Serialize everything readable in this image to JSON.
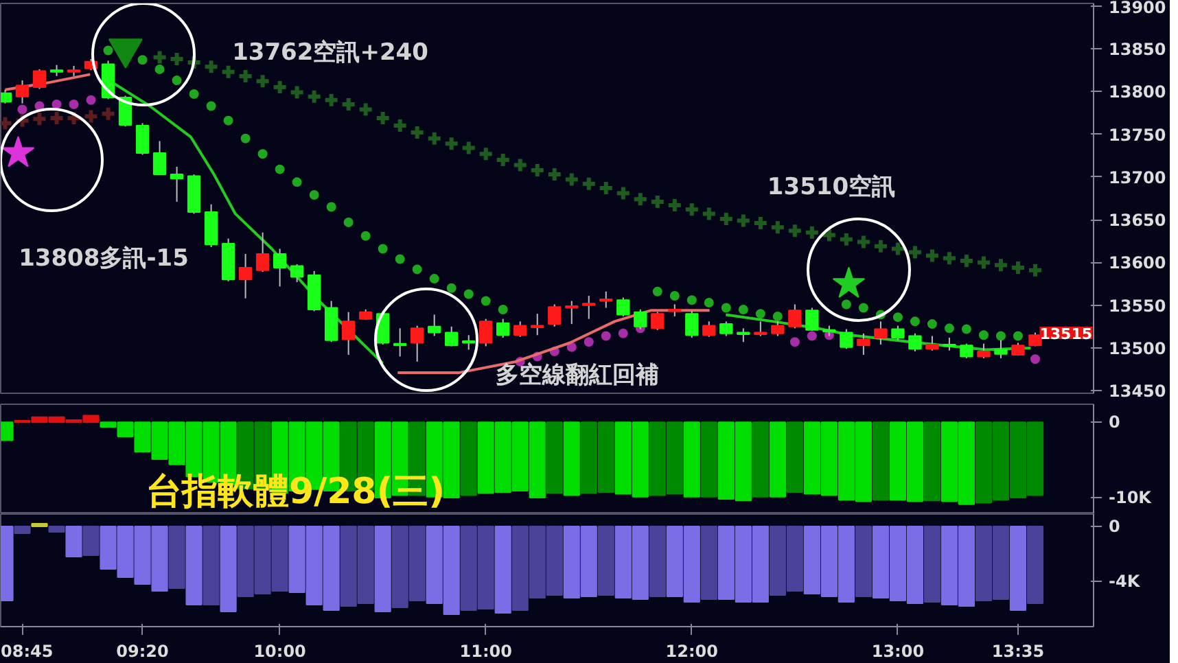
{
  "chart_data": [
    {
      "type": "candlestick",
      "tick_labels": "y",
      "grid": false,
      "x": [
        8.6667,
        8.75,
        8.8333,
        8.9167,
        9,
        9.0833,
        9.1667,
        9.25,
        9.3333,
        9.4167,
        9.5,
        9.5833,
        9.6667,
        9.75,
        9.8333,
        9.9167,
        10,
        10.0833,
        10.1667,
        10.25,
        10.3333,
        10.4167,
        10.5,
        10.5833,
        10.6667,
        10.75,
        10.8333,
        10.9167,
        11,
        11.0833,
        11.1667,
        11.25,
        11.3333,
        11.4167,
        11.5,
        11.5833,
        11.6667,
        11.75,
        11.8333,
        11.9167,
        12,
        12.0833,
        12.1667,
        12.25,
        12.3333,
        12.4167,
        12.5,
        12.5833,
        12.6667,
        12.75,
        12.8333,
        12.9167,
        13,
        13.0833,
        13.1667,
        13.25,
        13.3333,
        13.4167,
        13.5,
        13.5833,
        13.6667
      ],
      "ohlc": [
        [
          13798,
          13802,
          13786,
          13788
        ],
        [
          13794,
          13813,
          13786,
          13807
        ],
        [
          13805,
          13826,
          13803,
          13824
        ],
        [
          13825,
          13831,
          13818,
          13823
        ],
        [
          13823,
          13830,
          13818,
          13825
        ],
        [
          13827,
          13838,
          13825,
          13835
        ],
        [
          13832,
          13836,
          13791,
          13793
        ],
        [
          13793,
          13795,
          13759,
          13761
        ],
        [
          13760,
          13763,
          13726,
          13728
        ],
        [
          13728,
          13742,
          13703,
          13703
        ],
        [
          13703,
          13712,
          13671,
          13698
        ],
        [
          13701,
          13703,
          13657,
          13659
        ],
        [
          13659,
          13668,
          13618,
          13621
        ],
        [
          13622,
          13628,
          13578,
          13580
        ],
        [
          13580,
          13610,
          13558,
          13594
        ],
        [
          13591,
          13635,
          13589,
          13610
        ],
        [
          13610,
          13616,
          13572,
          13594
        ],
        [
          13596,
          13598,
          13577,
          13583
        ],
        [
          13585,
          13590,
          13543,
          13545
        ],
        [
          13547,
          13555,
          13507,
          13509
        ],
        [
          13510,
          13542,
          13492,
          13531
        ],
        [
          13534,
          13545,
          13533,
          13542
        ],
        [
          13540,
          13543,
          13504,
          13506
        ],
        [
          13505,
          13523,
          13490,
          13503
        ],
        [
          13506,
          13526,
          13484,
          13523
        ],
        [
          13525,
          13539,
          13514,
          13518
        ],
        [
          13518,
          13525,
          13502,
          13503
        ],
        [
          13508,
          13515,
          13498,
          13506
        ],
        [
          13506,
          13534,
          13502,
          13531
        ],
        [
          13529,
          13534,
          13512,
          13515
        ],
        [
          13515,
          13531,
          13513,
          13526
        ],
        [
          13524,
          13540,
          13515,
          13526
        ],
        [
          13528,
          13551,
          13525,
          13548
        ],
        [
          13547,
          13555,
          13528,
          13549
        ],
        [
          13550,
          13561,
          13534,
          13552
        ],
        [
          13555,
          13566,
          13547,
          13557
        ],
        [
          13556,
          13559,
          13537,
          13539
        ],
        [
          13542,
          13545,
          13522,
          13525
        ],
        [
          13523,
          13542,
          13521,
          13540
        ],
        [
          13543,
          13551,
          13537,
          13545
        ],
        [
          13540,
          13543,
          13512,
          13515
        ],
        [
          13515,
          13531,
          13513,
          13526
        ],
        [
          13528,
          13531,
          13514,
          13517
        ],
        [
          13518,
          13523,
          13507,
          13516
        ],
        [
          13516,
          13531,
          13514,
          13518
        ],
        [
          13517,
          13531,
          13514,
          13526
        ],
        [
          13525,
          13551,
          13523,
          13544
        ],
        [
          13544,
          13547,
          13520,
          13521
        ],
        [
          13521,
          13526,
          13514,
          13519
        ],
        [
          13518,
          13522,
          13499,
          13501
        ],
        [
          13503,
          13517,
          13492,
          13510
        ],
        [
          13512,
          13531,
          13504,
          13522
        ],
        [
          13522,
          13526,
          13509,
          13512
        ],
        [
          13514,
          13517,
          13496,
          13499
        ],
        [
          13499,
          13514,
          13497,
          13504
        ],
        [
          13504,
          13512,
          13497,
          13502
        ],
        [
          13503,
          13505,
          13488,
          13490
        ],
        [
          13490,
          13505,
          13488,
          13496
        ],
        [
          13498,
          13509,
          13488,
          13493
        ],
        [
          13492,
          13506,
          13491,
          13503
        ],
        [
          13503,
          13518,
          13502,
          13515
        ]
      ],
      "colors": [
        "#1aff1a",
        "#ff1a1a",
        "#ff1a1a",
        "#1aff1a",
        "#ff1a1a",
        "#ff1a1a",
        "#1aff1a",
        "#1aff1a",
        "#1aff1a",
        "#1aff1a",
        "#1aff1a",
        "#1aff1a",
        "#1aff1a",
        "#1aff1a",
        "#ff1a1a",
        "#ff1a1a",
        "#1aff1a",
        "#1aff1a",
        "#1aff1a",
        "#1aff1a",
        "#ff1a1a",
        "#ff1a1a",
        "#1aff1a",
        "#1aff1a",
        "#ff1a1a",
        "#1aff1a",
        "#1aff1a",
        "#1aff1a",
        "#ff1a1a",
        "#1aff1a",
        "#ff1a1a",
        "#ff1a1a",
        "#ff1a1a",
        "#ff1a1a",
        "#ff1a1a",
        "#ff1a1a",
        "#1aff1a",
        "#1aff1a",
        "#ff1a1a",
        "#ff1a1a",
        "#1aff1a",
        "#ff1a1a",
        "#1aff1a",
        "#1aff1a",
        "#ff1a1a",
        "#ff1a1a",
        "#ff1a1a",
        "#1aff1a",
        "#1aff1a",
        "#1aff1a",
        "#ff1a1a",
        "#ff1a1a",
        "#1aff1a",
        "#1aff1a",
        "#ff1a1a",
        "#1aff1a",
        "#1aff1a",
        "#ff1a1a",
        "#1aff1a",
        "#ff1a1a",
        "#ff1a1a"
      ],
      "series": [
        {
          "type": "scatter",
          "marker": "cross",
          "color": "#5c1e1e",
          "values": [
            13763,
            13766,
            13768,
            13769,
            13769,
            13771,
            13774,
            null,
            null,
            null,
            null,
            null,
            null,
            null,
            null,
            null,
            null,
            null,
            null,
            null,
            null,
            null,
            null,
            null,
            null,
            null,
            null,
            null,
            null,
            null,
            null,
            null,
            null,
            null,
            null,
            null,
            null,
            null,
            null,
            null,
            null,
            null,
            null,
            null,
            null,
            null,
            null,
            null,
            null,
            null,
            null,
            null,
            null,
            null,
            null,
            null,
            null,
            null,
            null,
            null,
            null
          ]
        },
        {
          "type": "scatter",
          "marker": "cross",
          "color": "#1f5c1f",
          "values": [
            null,
            null,
            null,
            null,
            null,
            null,
            null,
            null,
            null,
            13840,
            13838,
            13834,
            13829,
            13823,
            13818,
            13812,
            13805,
            13799,
            13794,
            13790,
            13785,
            13779,
            13769,
            13760,
            13752,
            13745,
            13739,
            13734,
            13727,
            13720,
            13714,
            13708,
            13703,
            13697,
            13692,
            13687,
            13681,
            13674,
            13671,
            13667,
            13662,
            13657,
            13651,
            13649,
            13646,
            13641,
            13637,
            13635,
            13632,
            13627,
            13624,
            13619,
            13616,
            13612,
            13608,
            13605,
            13602,
            13600,
            13597,
            13594,
            13591
          ]
        },
        {
          "type": "scatter",
          "marker": "circle",
          "color": "#1fa81f",
          "values": [
            null,
            null,
            null,
            null,
            null,
            null,
            13848,
            null,
            13837,
            13826,
            13813,
            13797,
            13783,
            13766,
            13745,
            13727,
            13709,
            13694,
            13679,
            13665,
            13647,
            13631,
            13616,
            13604,
            13592,
            13581,
            13570,
            13563,
            13555,
            13545,
            null,
            null,
            null,
            null,
            null,
            null,
            null,
            null,
            13566,
            13561,
            13556,
            13553,
            13547,
            13545,
            13540,
            13537,
            null,
            null,
            null,
            13551,
            13547,
            13539,
            13536,
            13531,
            13528,
            13523,
            13522,
            13515,
            13514,
            13514,
            null
          ]
        },
        {
          "type": "scatter",
          "marker": "circle",
          "color": "#a82ea8",
          "values": [
            null,
            13779,
            13783,
            13785,
            13785,
            13790,
            null,
            null,
            null,
            null,
            null,
            null,
            null,
            null,
            null,
            null,
            null,
            null,
            null,
            null,
            null,
            null,
            null,
            null,
            null,
            null,
            null,
            null,
            null,
            null,
            13484,
            13490,
            13496,
            13501,
            13507,
            13514,
            13517,
            13523,
            null,
            null,
            null,
            null,
            null,
            null,
            null,
            null,
            13507,
            13514,
            13515,
            null,
            null,
            null,
            null,
            null,
            null,
            null,
            null,
            null,
            null,
            null,
            13487
          ]
        },
        {
          "type": "line",
          "color": "#e86a6a",
          "x": [
            8.667,
            8.869,
            9.079
          ],
          "values": [
            13802,
            13810,
            13820
          ]
        },
        {
          "type": "line",
          "color": "#22cc22",
          "x": [
            9.158,
            9.369,
            9.567,
            9.678,
            9.784,
            9.961,
            10.178,
            10.5
          ],
          "values": [
            13815,
            13783,
            13747,
            13704,
            13657,
            13616,
            13558,
            13482
          ]
        },
        {
          "type": "line",
          "color": "#e86a6a",
          "x": [
            10.572,
            10.868,
            11.145,
            11.408,
            11.625,
            11.803,
            12.086
          ],
          "values": [
            13471,
            13471,
            13484,
            13506,
            13531,
            13544,
            13544
          ]
        },
        {
          "type": "line",
          "color": "#22cc22",
          "x": [
            12.165,
            12.395,
            12.612,
            12.77,
            13.099,
            13.428,
            13.645
          ],
          "values": [
            13539,
            13531,
            13523,
            13515,
            13506,
            13498,
            13500
          ]
        },
        {
          "type": "scatter",
          "marker": "star",
          "color": "#dd33dd",
          "x": [
            8.73
          ],
          "values": [
            13728
          ]
        },
        {
          "type": "scatter",
          "marker": "triangle",
          "color": "#118811",
          "x": [
            9.251
          ],
          "values": [
            13850
          ]
        },
        {
          "type": "scatter",
          "marker": "star",
          "color": "#22cc22",
          "x": [
            12.762
          ],
          "values": [
            13575
          ]
        }
      ],
      "xlim": [
        8.645,
        13.95
      ],
      "ylim": [
        13447,
        13903
      ],
      "yticks": [
        13450,
        13500,
        13550,
        13600,
        13650,
        13700,
        13750,
        13800,
        13850,
        13900
      ],
      "annotations": [
        "13808多訊-15",
        "13762空訊+240",
        "多空線翻紅回補",
        "13510空訊",
        "13515"
      ]
    },
    {
      "type": "bar",
      "title": "台指軟體9/28(三)",
      "tick_labels": "y",
      "grid": false,
      "x": [
        8.6667,
        8.75,
        8.8333,
        8.9167,
        9,
        9.0833,
        9.1667,
        9.25,
        9.3333,
        9.4167,
        9.5,
        9.5833,
        9.6667,
        9.75,
        9.8333,
        9.9167,
        10,
        10.0833,
        10.1667,
        10.25,
        10.3333,
        10.4167,
        10.5,
        10.5833,
        10.6667,
        10.75,
        10.8333,
        10.9167,
        11,
        11.0833,
        11.1667,
        11.25,
        11.3333,
        11.4167,
        11.5,
        11.5833,
        11.6667,
        11.75,
        11.8333,
        11.9167,
        12,
        12.0833,
        12.1667,
        12.25,
        12.3333,
        12.4167,
        12.5,
        12.5833,
        12.6667,
        12.75,
        12.8333,
        12.9167,
        13,
        13.0833,
        13.1667,
        13.25,
        13.3333,
        13.4167,
        13.5,
        13.5833,
        13.6667
      ],
      "values": [
        -2400,
        200,
        700,
        700,
        300,
        900,
        -600,
        -1900,
        -3900,
        -4900,
        -5600,
        -7200,
        -7900,
        -8300,
        -8800,
        -8900,
        -9400,
        -9100,
        -8900,
        -9100,
        -9100,
        -9000,
        -10000,
        -9700,
        -9700,
        -9900,
        -10000,
        -9700,
        -9400,
        -9300,
        -9100,
        -10000,
        -9400,
        -9700,
        -9400,
        -9300,
        -9500,
        -9900,
        -9700,
        -9500,
        -9900,
        -9900,
        -10200,
        -10400,
        -9900,
        -9900,
        -9300,
        -9500,
        -9700,
        -10300,
        -10500,
        -10300,
        -10300,
        -10500,
        -10400,
        -10500,
        -10900,
        -10700,
        -10300,
        -10000,
        -9700
      ],
      "colors": [
        "#00dd00",
        "#dd1111",
        "#dd1111",
        "#dd1111",
        "#dd1111",
        "#dd1111",
        "#00dd00",
        "#00dd00",
        "#00dd00",
        "#00dd00",
        "#00dd00",
        "#00dd00",
        "#00dd00",
        "#00dd00",
        "#008a00",
        "#008a00",
        "#00dd00",
        "#00dd00",
        "#00dd00",
        "#00dd00",
        "#008a00",
        "#008a00",
        "#00dd00",
        "#00dd00",
        "#008a00",
        "#00dd00",
        "#00dd00",
        "#008a00",
        "#00dd00",
        "#00dd00",
        "#00dd00",
        "#00dd00",
        "#008a00",
        "#00dd00",
        "#008a00",
        "#008a00",
        "#00dd00",
        "#00dd00",
        "#008a00",
        "#008a00",
        "#00dd00",
        "#008a00",
        "#00dd00",
        "#00dd00",
        "#008a00",
        "#00dd00",
        "#008a00",
        "#00dd00",
        "#00dd00",
        "#00dd00",
        "#00dd00",
        "#008a00",
        "#00dd00",
        "#00dd00",
        "#008a00",
        "#00dd00",
        "#00dd00",
        "#008a00",
        "#008a00",
        "#008a00",
        "#008a00"
      ],
      "xlim": [
        8.645,
        13.95
      ],
      "ylim": [
        -12200,
        2400
      ],
      "yticks": [
        0,
        {
          "value": -10000,
          "label": "-10K"
        }
      ]
    },
    {
      "type": "bar",
      "grid": false,
      "x": [
        8.6667,
        8.75,
        8.8333,
        8.9167,
        9,
        9.0833,
        9.1667,
        9.25,
        9.3333,
        9.4167,
        9.5,
        9.5833,
        9.6667,
        9.75,
        9.8333,
        9.9167,
        10,
        10.0833,
        10.1667,
        10.25,
        10.3333,
        10.4167,
        10.5,
        10.5833,
        10.6667,
        10.75,
        10.8333,
        10.9167,
        11,
        11.0833,
        11.1667,
        11.25,
        11.3333,
        11.4167,
        11.5,
        11.5833,
        11.6667,
        11.75,
        11.8333,
        11.9167,
        12,
        12.0833,
        12.1667,
        12.25,
        12.3333,
        12.4167,
        12.5,
        12.5833,
        12.6667,
        12.75,
        12.8333,
        12.9167,
        13,
        13.0833,
        13.1667,
        13.25,
        13.3333,
        13.4167,
        13.5,
        13.5833,
        13.6667
      ],
      "values": [
        -5400,
        -500,
        200,
        -400,
        -2200,
        -2100,
        -3100,
        -3700,
        -4200,
        -4700,
        -4500,
        -5700,
        -5700,
        -6200,
        -5100,
        -4900,
        -4700,
        -4800,
        -5700,
        -6100,
        -5800,
        -5600,
        -6200,
        -5900,
        -5400,
        -5600,
        -6400,
        -6100,
        -6000,
        -6300,
        -6100,
        -5200,
        -5000,
        -5200,
        -5100,
        -5000,
        -5200,
        -5300,
        -5100,
        -5100,
        -5500,
        -5300,
        -5300,
        -5500,
        -5500,
        -5000,
        -4700,
        -4900,
        -5100,
        -5500,
        -5100,
        -5200,
        -5400,
        -5600,
        -5500,
        -5700,
        -5800,
        -5400,
        -5300,
        -6100,
        -5600
      ],
      "colors": [
        "#7a6de6",
        "#4a4399",
        "#c8c832",
        "#4a4399",
        "#7a6de6",
        "#4a4399",
        "#7a6de6",
        "#7a6de6",
        "#7a6de6",
        "#7a6de6",
        "#4a4399",
        "#7a6de6",
        "#4a4399",
        "#7a6de6",
        "#4a4399",
        "#4a4399",
        "#4a4399",
        "#7a6de6",
        "#7a6de6",
        "#7a6de6",
        "#4a4399",
        "#4a4399",
        "#7a6de6",
        "#4a4399",
        "#4a4399",
        "#7a6de6",
        "#7a6de6",
        "#4a4399",
        "#4a4399",
        "#7a6de6",
        "#4a4399",
        "#4a4399",
        "#4a4399",
        "#7a6de6",
        "#7a6de6",
        "#4a4399",
        "#7a6de6",
        "#7a6de6",
        "#4a4399",
        "#7a6de6",
        "#7a6de6",
        "#4a4399",
        "#7a6de6",
        "#7a6de6",
        "#7a6de6",
        "#4a4399",
        "#4a4399",
        "#7a6de6",
        "#7a6de6",
        "#7a6de6",
        "#4a4399",
        "#7a6de6",
        "#7a6de6",
        "#7a6de6",
        "#4a4399",
        "#7a6de6",
        "#7a6de6",
        "#4a4399",
        "#4a4399",
        "#7a6de6",
        "#4a4399"
      ],
      "xlim": [
        8.645,
        13.95
      ],
      "ylim": [
        -7300,
        900
      ],
      "yticks": [
        0,
        {
          "value": -4000,
          "label": "-4K"
        }
      ],
      "xticks": [
        {
          "value": 8.75,
          "label": "08:45"
        },
        {
          "value": 9.3333,
          "label": "09:20"
        },
        {
          "value": 10,
          "label": "10:00"
        },
        {
          "value": 11,
          "label": "11:00"
        },
        {
          "value": 12,
          "label": "12:00"
        },
        {
          "value": 13,
          "label": "13:00"
        },
        {
          "value": 13.5833,
          "label": "13:35"
        }
      ]
    }
  ]
}
